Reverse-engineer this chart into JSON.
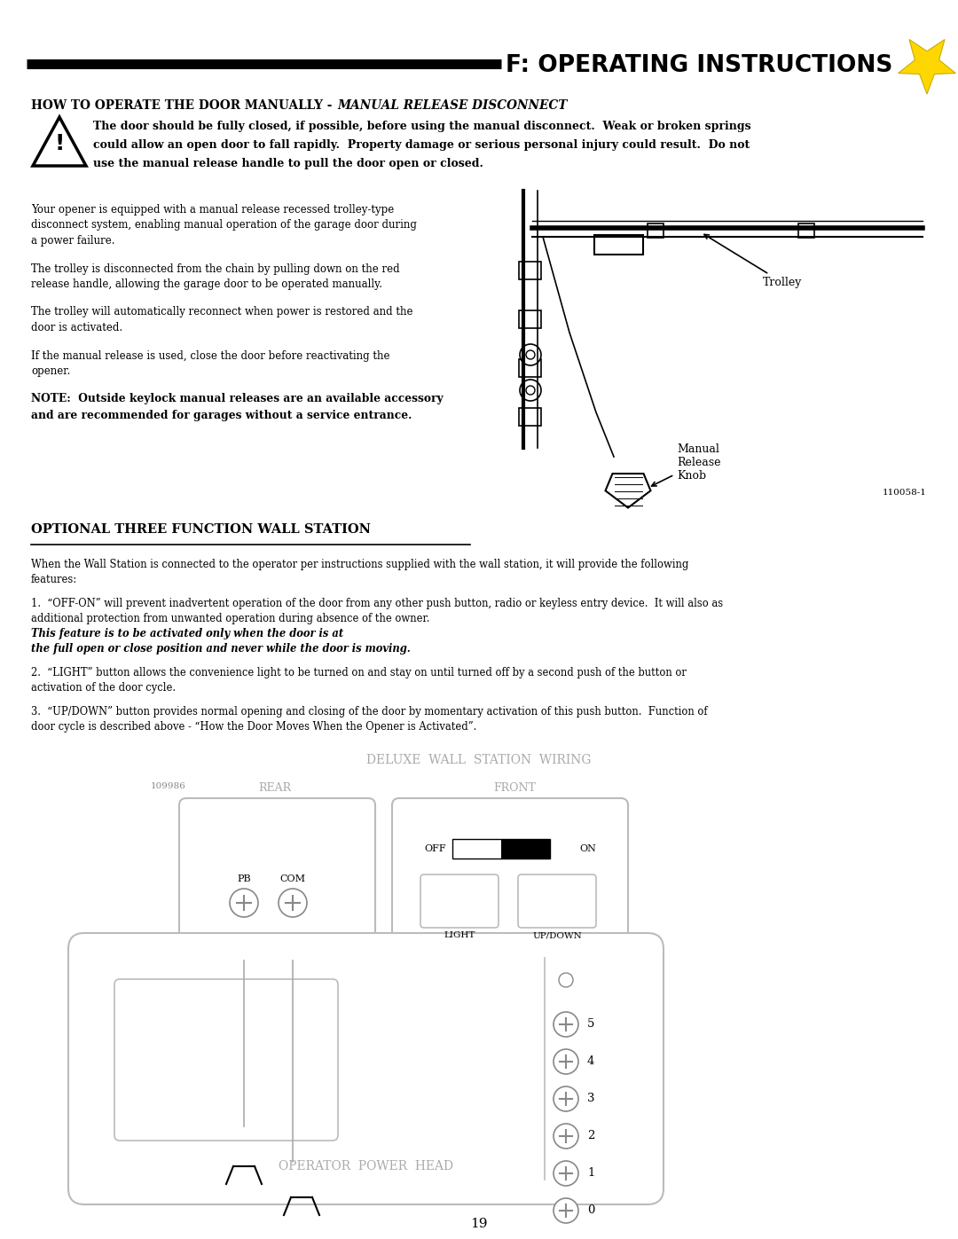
{
  "page_number": "19",
  "bg_color": "#ffffff",
  "header_text": "F: OPERATING INSTRUCTIONS",
  "header_fontsize": 19,
  "star_color": "#FFD700",
  "section1_title_bold": "HOW TO OPERATE THE DOOR MANUALLY - ",
  "section1_title_italic": "MANUAL RELEASE DISCONNECT",
  "warning_text_lines": [
    "The door should be fully closed, if possible, before using the manual disconnect.  Weak or broken springs",
    "could allow an open door to fall rapidly.  Property damage or serious personal injury could result.  Do not",
    "use the manual release handle to pull the door open or closed."
  ],
  "body_text1_lines": [
    "Your opener is equipped with a manual release recessed trolley-type",
    "disconnect system, enabling manual operation of the garage door during",
    "a power failure."
  ],
  "body_text2_lines": [
    "The trolley is disconnected from the chain by pulling down on the red",
    "release handle, allowing the garage door to be operated manually."
  ],
  "body_text3_lines": [
    "The trolley will automatically reconnect when power is restored and the",
    "door is activated."
  ],
  "body_text4_lines": [
    "If the manual release is used, close the door before reactivating the",
    "opener."
  ],
  "note_text_lines": [
    "NOTE:  Outside keylock manual releases are an available accessory",
    "and are recommended for garages without a service entrance."
  ],
  "diagram_label_trolley": "Trolley",
  "diagram_label_knob": "Manual\nRelease\nKnob",
  "diagram_ref": "110058-1",
  "section2_title": "OPTIONAL THREE FUNCTION WALL STATION",
  "section2_intro_lines": [
    "When the Wall Station is connected to the operator per instructions supplied with the wall station, it will provide the following",
    "features:"
  ],
  "item1_lines": [
    "1.  “OFF-ON” will prevent inadvertent operation of the door from any other push button, radio or keyless entry device.  It will also as",
    "additional protection from unwanted operation during absence of the owner.  "
  ],
  "item1_bold_italic_lines": [
    "This feature is to be activated only when the door is at",
    "the full open or close position and never while the door is moving."
  ],
  "item2_lines": [
    "2.  “LIGHT” button allows the convenience light to be turned on and stay on until turned off by a second push of the button or",
    "activation of the door cycle."
  ],
  "item3_lines": [
    "3.  “UP/DOWN” button provides normal opening and closing of the door by momentary activation of this push button.  Function of",
    "door cycle is described above - “How the Door Moves When the Opener is Activated”."
  ],
  "wiring_title": "DELUXE  WALL  STATION  WIRING",
  "wiring_rear_label": "REAR",
  "wiring_front_label": "FRONT",
  "wiring_ref": "109986",
  "wiring_pb_label": "PB",
  "wiring_com_label": "COM",
  "wiring_off_label": "OFF",
  "wiring_on_label": "ON",
  "wiring_light_label": "LIGHT",
  "wiring_updown_label": "UP/DOWN",
  "power_head_label": "OPERATOR  POWER  HEAD",
  "numbers_labels": [
    "5",
    "4",
    "3",
    "2",
    "1",
    "0"
  ]
}
